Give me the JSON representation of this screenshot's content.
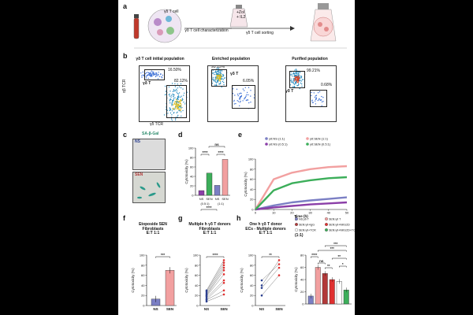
{
  "figure": {
    "a": {
      "panel_label": "a",
      "steps": [
        "γδ T cell",
        "γδ T cell characterization",
        "+Zol\n+ IL2",
        "γδ T cell sorting"
      ]
    },
    "b": {
      "panel_label": "b",
      "plots": [
        {
          "title": "γδ T cell initial population",
          "gates": [
            "16.50%",
            "82.12%"
          ],
          "pop_label": "γδ T",
          "xlabel": "γδ TCR",
          "ylabel": "αβ TCR"
        },
        {
          "title": "Enriched population",
          "gates": [
            "93.15%",
            "6.05%"
          ],
          "pop_label": "γδ T"
        },
        {
          "title": "Purified population",
          "gates": [
            "99.21%",
            "0.68%"
          ],
          "pop_label": "γδ T"
        }
      ]
    },
    "c_stain": {
      "panel_label": "c",
      "stain": "SA-β-Gal",
      "conditions": [
        "NS",
        "SEN"
      ]
    },
    "d": {
      "panel_label": "d",
      "ylabel": "Cytotoxicity (%)",
      "significance": [
        "ns",
        "****",
        "****",
        "****"
      ],
      "tick_labels": [
        "NS",
        "SEN",
        "NS",
        "SEN"
      ],
      "ratio_labels": [
        "(0.5:1)",
        "(1:1)"
      ]
    },
    "e": {
      "panel_label": "e",
      "ylabel": "Cytotoxicity (%)",
      "xlabel": "Time (h)",
      "legend": [
        "γδ:NS (1:1)",
        "γδ:NS (0.5:1)",
        "γδ:SEN (1:1)",
        "γδ:SEN (0.5:1)"
      ]
    },
    "f": {
      "panel_label": "f",
      "title": "Etoposide SEN\nFibroblasts\nE:T 1:1",
      "ylabel": "Cytotoxicity (%)",
      "significance": "***",
      "tick_labels": [
        "NS",
        "SEN"
      ]
    },
    "g": {
      "panel_label": "g",
      "title": "Multiple h γδ T donors\nFibroblasts\nE:T 1:1",
      "ylabel": "Cytotoxicity (%)",
      "significance": "****",
      "tick_labels": [
        "NS",
        "SEN"
      ]
    },
    "h": {
      "panel_label": "h",
      "title": "One h γδ T donor\nECs - Multiple donors\nE:T 1:1",
      "ylabel": "Cytotoxicity (%)",
      "significance": "**",
      "tick_labels": [
        "NS",
        "SEN"
      ]
    },
    "i": {
      "panel_label": "i",
      "ratio": "(1:1)",
      "ylabel": "Cytotoxicity (%)",
      "legend": [
        "NS:γδ T",
        "SEN:γδ T",
        "SEN:γδ+IgG",
        "SEN:γδ+NKG2D",
        "SEN:γδ+TCR",
        "SEN:γδ+NKG2D\n+TCR"
      ],
      "significance": [
        "****",
        "ns",
        "***",
        "***",
        "**",
        "**",
        "*"
      ]
    },
    "colors": {
      "ns": "#7b7fc4",
      "sen": "#f2a0a0",
      "green": "#3cae5a",
      "purple": "#8b3fa8",
      "darkred": "#b23a3a",
      "red_dot": "#e03030",
      "blue_dot": "#2b3f8f"
    }
  },
  "chart_data": [
    {
      "type": "bar",
      "panel": "d",
      "categories": [
        "NS (0.5:1)",
        "SEN (0.5:1)",
        "NS (1:1)",
        "SEN (1:1)"
      ],
      "values": [
        10,
        47,
        21,
        76
      ],
      "ylabel": "Cytotoxicity (%)",
      "ylim": [
        0,
        100
      ]
    },
    {
      "type": "line",
      "panel": "e",
      "x": [
        0,
        10,
        20,
        30,
        40,
        50
      ],
      "series": [
        {
          "name": "γδ:NS (1:1)",
          "values": [
            0,
            8,
            14,
            18,
            21,
            24
          ]
        },
        {
          "name": "γδ:NS (0.5:1)",
          "values": [
            0,
            4,
            7,
            10,
            12,
            14
          ]
        },
        {
          "name": "γδ:SEN (1:1)",
          "values": [
            0,
            60,
            73,
            80,
            84,
            86
          ]
        },
        {
          "name": "γδ:SEN (0.5:1)",
          "values": [
            0,
            38,
            52,
            58,
            62,
            64
          ]
        }
      ],
      "xlabel": "Time (h)",
      "ylabel": "Cytotoxicity (%)",
      "xlim": [
        0,
        50
      ],
      "ylim": [
        0,
        100
      ]
    },
    {
      "type": "bar",
      "panel": "f",
      "categories": [
        "NS",
        "SEN"
      ],
      "values": [
        13,
        70
      ],
      "ylabel": "Cytotoxicity (%)",
      "ylim": [
        0,
        100
      ]
    },
    {
      "type": "line",
      "panel": "g",
      "x": [
        "NS",
        "SEN"
      ],
      "series": [
        {
          "values": [
            8,
            22
          ]
        },
        {
          "values": [
            11,
            30
          ]
        },
        {
          "values": [
            12,
            45
          ]
        },
        {
          "values": [
            15,
            50
          ]
        },
        {
          "values": [
            18,
            62
          ]
        },
        {
          "values": [
            20,
            70
          ]
        },
        {
          "values": [
            22,
            75
          ]
        },
        {
          "values": [
            25,
            80
          ]
        },
        {
          "values": [
            28,
            85
          ]
        },
        {
          "values": [
            30,
            90
          ]
        }
      ],
      "ylabel": "Cytotoxicity (%)",
      "ylim": [
        0,
        100
      ]
    },
    {
      "type": "line",
      "panel": "h",
      "x": [
        "NS",
        "SEN"
      ],
      "series": [
        {
          "values": [
            20,
            60
          ]
        },
        {
          "values": [
            35,
            75
          ]
        },
        {
          "values": [
            40,
            90
          ]
        },
        {
          "values": [
            50,
            82
          ]
        }
      ],
      "ylabel": "Cytotoxicity (%)",
      "ylim": [
        0,
        100
      ]
    },
    {
      "type": "bar",
      "panel": "i",
      "categories": [
        "NS:γδ T",
        "SEN:γδ T",
        "SEN:γδ+IgG",
        "SEN:γδ+NKG2D",
        "SEN:γδ+TCR",
        "SEN:γδ+NKG2D+TCR"
      ],
      "values": [
        13,
        60,
        50,
        40,
        37,
        23
      ],
      "ylabel": "Cytotoxicity (%)",
      "ylim": [
        0,
        80
      ]
    }
  ]
}
